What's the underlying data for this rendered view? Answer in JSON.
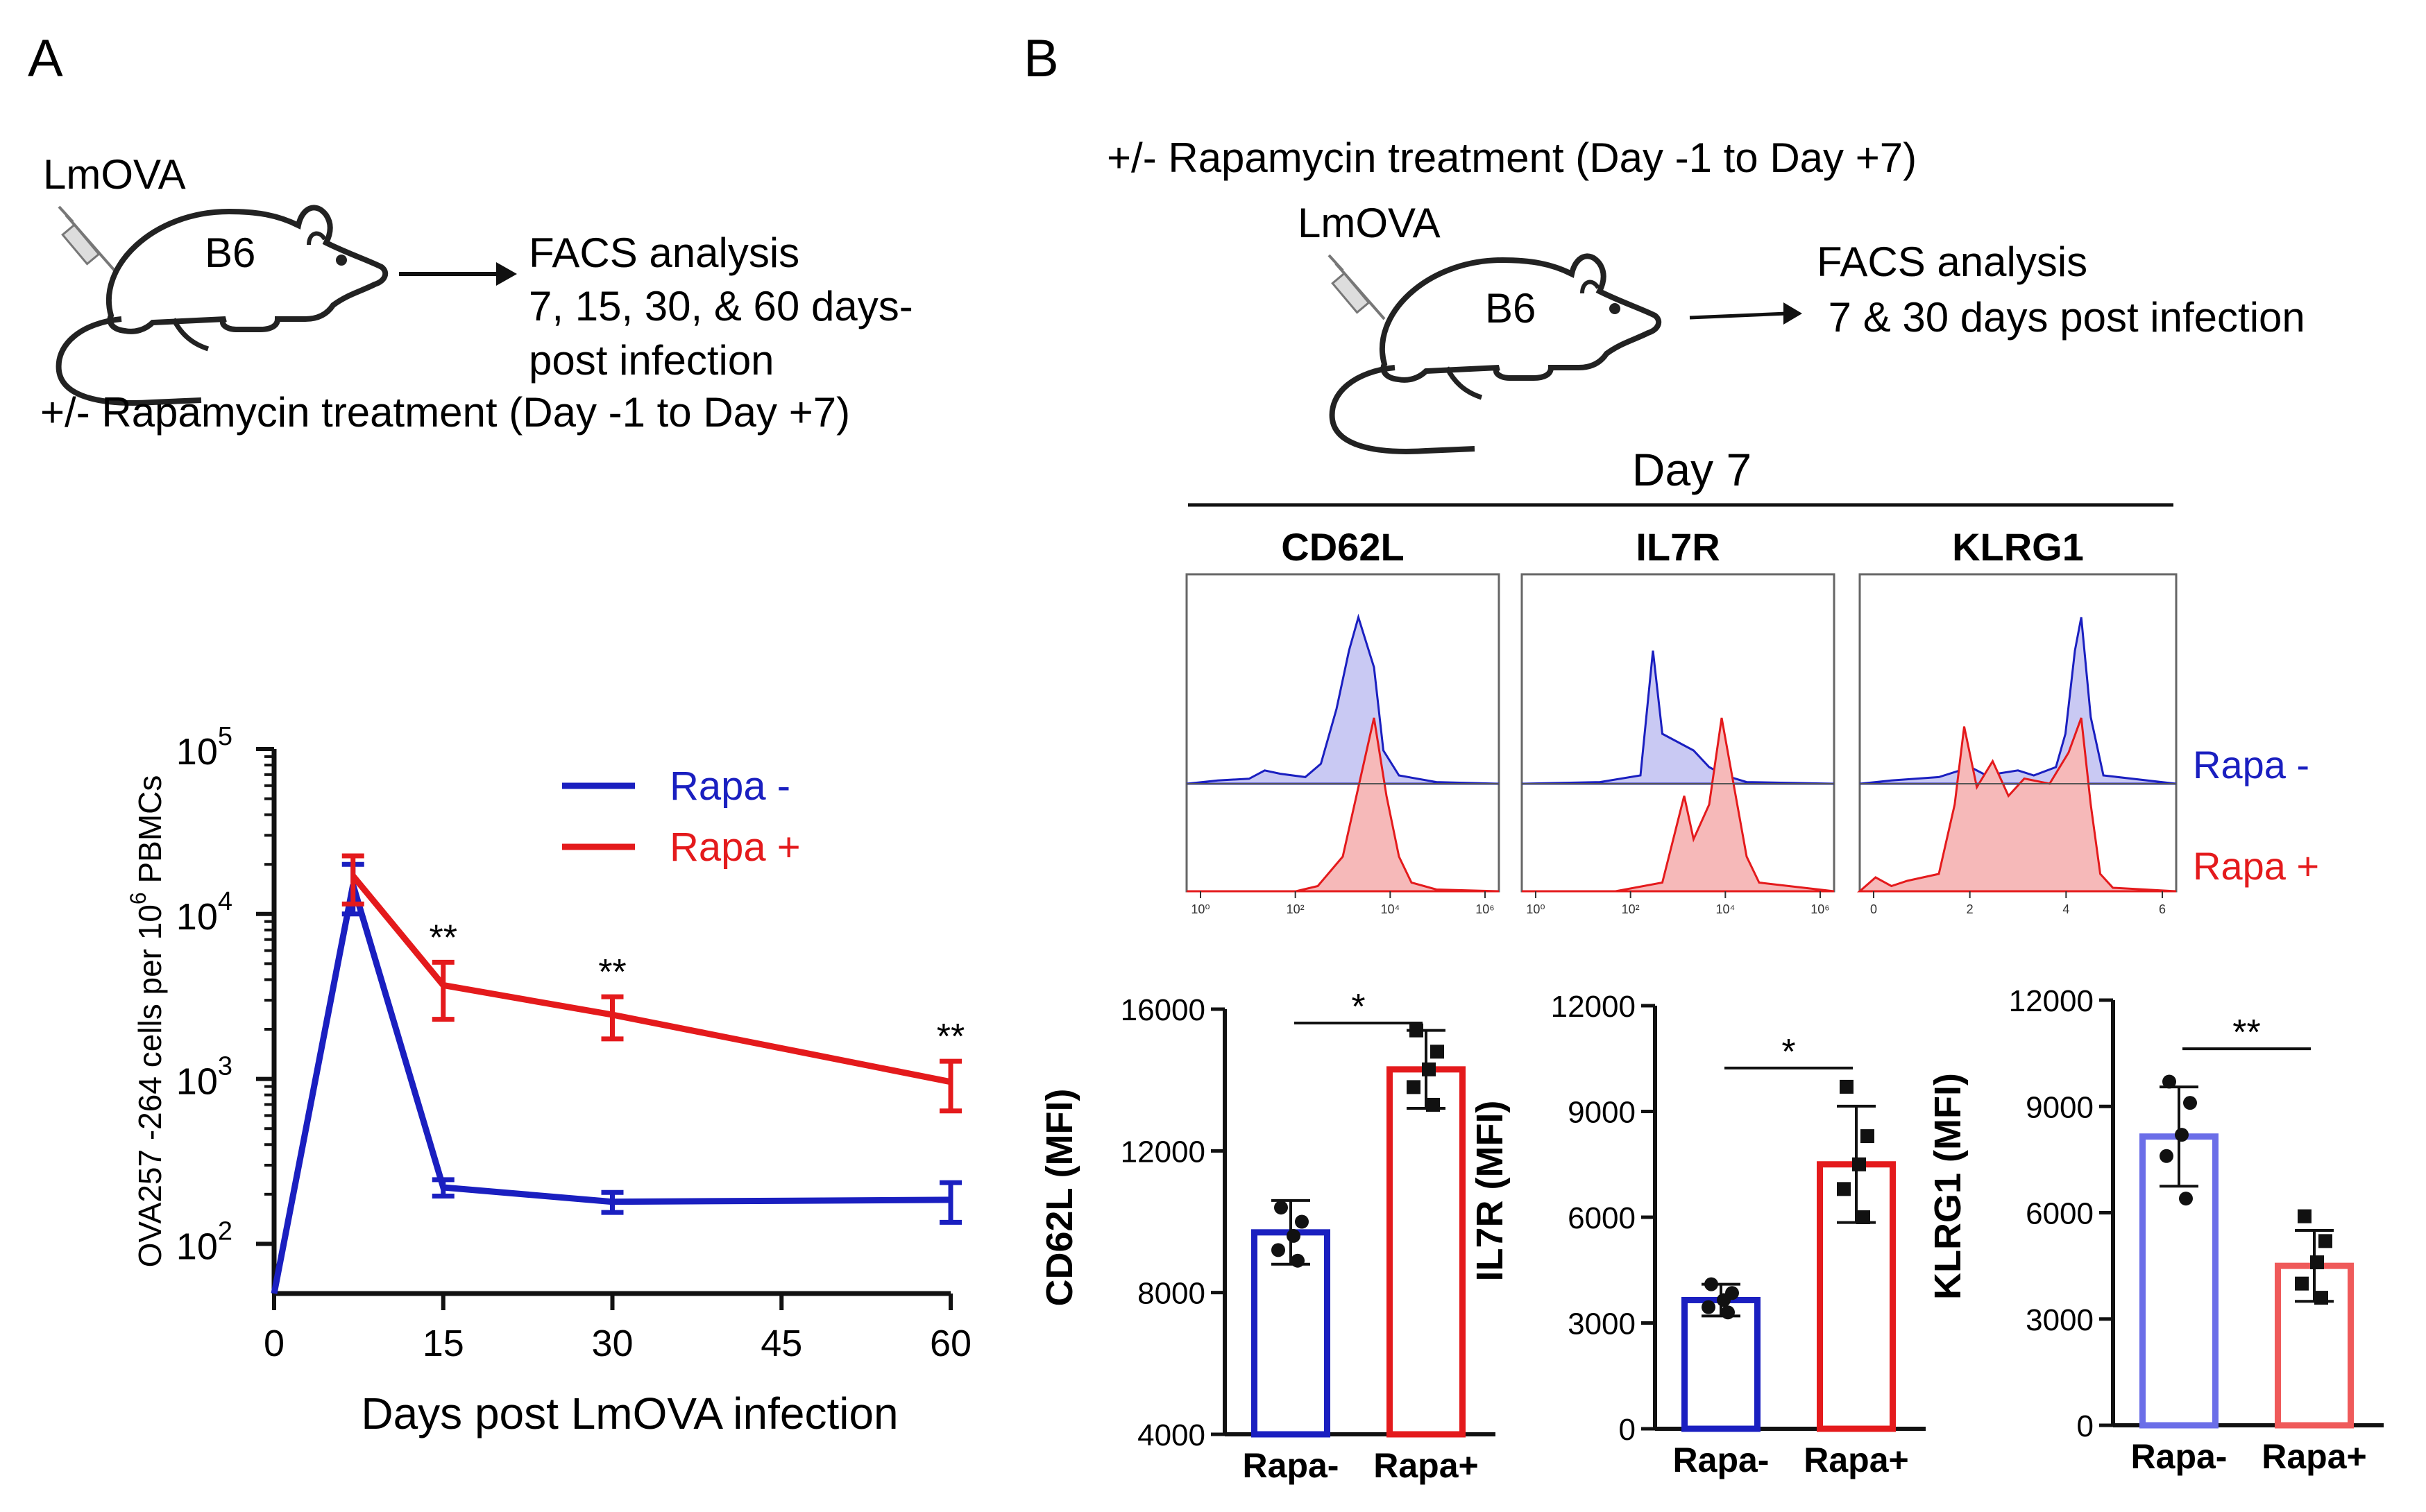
{
  "panelA": {
    "letter": "A",
    "schematic": {
      "agent": "LmOVA",
      "strain": "B6",
      "analysis_title": "FACS analysis",
      "analysis_line2": "7, 15, 30, & 60 days-",
      "analysis_line3": "post infection",
      "treatment": "+/- Rapamycin treatment (Day -1 to Day +7)"
    }
  },
  "panelB": {
    "letter": "B",
    "schematic": {
      "treatment": "+/- Rapamycin treatment (Day -1 to Day +7)",
      "agent": "LmOVA",
      "strain": "B6",
      "analysis_title": "FACS analysis",
      "analysis_line2": " 7 & 30 days post infection"
    },
    "histograms": {
      "day_label": "Day 7",
      "markers": [
        "CD62L",
        "IL7R",
        "KLRG1"
      ],
      "legend": [
        "Rapa -",
        "Rapa +"
      ],
      "axis_ticks_log": [
        "10⁰",
        "10²",
        "10⁴",
        "10⁶"
      ],
      "axis_ticks_lin": [
        "0",
        "2",
        "4",
        "6"
      ]
    }
  },
  "colors": {
    "rapa_minus": "#1a1fc0",
    "rapa_plus": "#e41a1c",
    "hist_blue_fill": "#c9c9f3",
    "hist_red_fill": "#f6b9b9"
  },
  "chart_data": [
    {
      "type": "line",
      "title": "",
      "xlabel": "Days post LmOVA infection",
      "ylabel": "OVA257 -264 cells per 10^6 PBMCs",
      "yscale": "log",
      "xlim": [
        0,
        60
      ],
      "ylim": [
        50,
        100000
      ],
      "xticks": [
        0,
        15,
        30,
        45,
        60
      ],
      "yticks": [
        100,
        1000,
        10000,
        100000
      ],
      "ytick_labels": [
        [
          "10",
          "2"
        ],
        [
          "10",
          "3"
        ],
        [
          "10",
          "4"
        ],
        [
          "10",
          "5"
        ]
      ],
      "legend_position": "top-right",
      "series": [
        {
          "name": "Rapa -",
          "x": [
            0,
            7,
            15,
            30,
            60
          ],
          "y": [
            50,
            15000,
            220,
            180,
            185
          ],
          "err": [
            0,
            5000,
            25,
            25,
            50
          ]
        },
        {
          "name": "Rapa +",
          "x": [
            7,
            15,
            30,
            60
          ],
          "y": [
            17000,
            3700,
            2450,
            960
          ],
          "err": [
            5500,
            1400,
            700,
            320
          ]
        }
      ],
      "annotations": [
        {
          "x": 15,
          "text": "**"
        },
        {
          "x": 30,
          "text": "**"
        },
        {
          "x": 60,
          "text": "**"
        }
      ]
    },
    {
      "type": "bar",
      "ylabel": "CD62L (MFI)",
      "categories": [
        "Rapa-",
        "Rapa+"
      ],
      "values": [
        9700,
        14300
      ],
      "errors": [
        900,
        1100
      ],
      "ylim": [
        4000,
        16000
      ],
      "yticks": [
        4000,
        8000,
        12000,
        16000
      ],
      "points": [
        [
          10400,
          10000,
          9600,
          9200,
          8900
        ],
        [
          15400,
          14800,
          14300,
          13800,
          13300
        ]
      ],
      "significance": "*"
    },
    {
      "type": "bar",
      "ylabel": "IL7R (MFI)",
      "categories": [
        "Rapa-",
        "Rapa+"
      ],
      "values": [
        3650,
        7500
      ],
      "errors": [
        450,
        1650
      ],
      "ylim": [
        0,
        12000
      ],
      "yticks": [
        0,
        3000,
        6000,
        9000,
        12000
      ],
      "points": [
        [
          4100,
          3850,
          3650,
          3450,
          3300
        ],
        [
          9700,
          8300,
          7500,
          6800,
          6000
        ]
      ],
      "significance": "*"
    },
    {
      "type": "bar",
      "ylabel": "KLRG1 (MFI)",
      "categories": [
        "Rapa-",
        "Rapa+"
      ],
      "values": [
        8150,
        4500
      ],
      "errors": [
        1400,
        1000
      ],
      "ylim": [
        0,
        12000
      ],
      "yticks": [
        0,
        3000,
        6000,
        9000,
        12000
      ],
      "points": [
        [
          9700,
          9100,
          8200,
          7600,
          6400
        ],
        [
          5900,
          5200,
          4600,
          4000,
          3600
        ]
      ],
      "significance": "**"
    }
  ]
}
